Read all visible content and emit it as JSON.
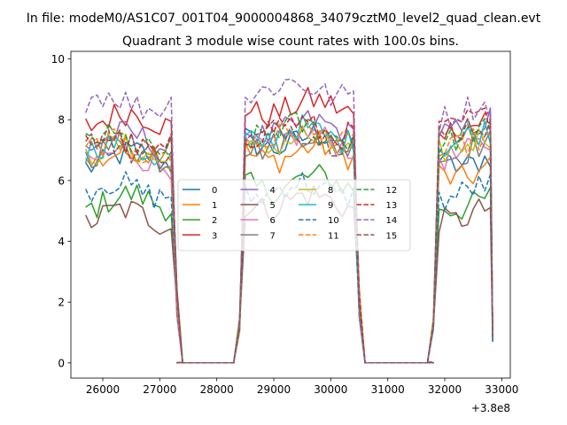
{
  "chart_data": {
    "type": "line",
    "suptitle": "In file: modeM0/AS1C07_001T04_9000004868_34079cztM0_level2_quad_clean.evt",
    "title": "Quadrant 3 module wise count rates with 100.0s bins.",
    "xlabel": "",
    "ylabel": "",
    "x_offset_label": "+3.8e8",
    "xlim": [
      25440,
      33150
    ],
    "ylim": [
      -0.5,
      10.25
    ],
    "xticks": [
      26000,
      27000,
      28000,
      29000,
      30000,
      31000,
      32000,
      33000
    ],
    "xtick_labels": [
      "26000",
      "27000",
      "28000",
      "29000",
      "30000",
      "31000",
      "32000",
      "33000"
    ],
    "yticks": [
      0,
      2,
      4,
      6,
      8,
      10
    ],
    "ytick_labels": [
      "0",
      "2",
      "4",
      "6",
      "8",
      "10"
    ],
    "grid": false,
    "legend_location": "center",
    "legend_columns": 4,
    "segments": [
      [
        25700,
        27200
      ],
      [
        28500,
        30400
      ],
      [
        31900,
        32800
      ]
    ],
    "gaps": [
      {
        "from": 27300,
        "to": 28300,
        "value": 0
      },
      {
        "from": 30600,
        "to": 31800,
        "value": 0
      }
    ],
    "series": [
      {
        "name": "0",
        "color": "#1f77b4",
        "dash": "solid",
        "base": [
          6.7,
          7.3,
          6.7
        ],
        "end_value": 1.0
      },
      {
        "name": "1",
        "color": "#ff7f0e",
        "dash": "solid",
        "base": [
          6.8,
          6.9,
          6.3
        ],
        "end_value": 0.9
      },
      {
        "name": "2",
        "color": "#2ca02c",
        "dash": "solid",
        "base": [
          5.3,
          5.9,
          5.3
        ],
        "end_value": 0.8
      },
      {
        "name": "3",
        "color": "#d62728",
        "dash": "solid",
        "base": [
          8.0,
          8.4,
          7.9
        ],
        "end_value": 1.0
      },
      {
        "name": "4",
        "color": "#9467bd",
        "dash": "solid",
        "base": [
          7.3,
          7.7,
          7.8
        ],
        "end_value": 1.0
      },
      {
        "name": "5",
        "color": "#8c564b",
        "dash": "solid",
        "base": [
          4.8,
          5.3,
          4.9
        ],
        "end_value": 0.7
      },
      {
        "name": "6",
        "color": "#e377c2",
        "dash": "solid",
        "base": [
          6.7,
          7.3,
          7.0
        ],
        "end_value": 0.9
      },
      {
        "name": "7",
        "color": "#7f7f7f",
        "dash": "solid",
        "base": [
          6.9,
          7.3,
          7.0
        ],
        "end_value": 0.9
      },
      {
        "name": "8",
        "color": "#bcbd22",
        "dash": "solid",
        "base": [
          6.9,
          7.2,
          7.2
        ],
        "end_value": 0.9
      },
      {
        "name": "9",
        "color": "#17becf",
        "dash": "solid",
        "base": [
          7.0,
          7.5,
          7.4
        ],
        "end_value": 0.9
      },
      {
        "name": "10",
        "color": "#1f77b4",
        "dash": "dashed",
        "base": [
          5.7,
          5.7,
          5.6
        ],
        "end_value": 0.7
      },
      {
        "name": "11",
        "color": "#ff7f0e",
        "dash": "dashed",
        "base": [
          7.0,
          7.4,
          7.1
        ],
        "end_value": 0.9
      },
      {
        "name": "12",
        "color": "#2ca02c",
        "dash": "dashed",
        "base": [
          7.2,
          7.6,
          7.4
        ],
        "end_value": 0.9
      },
      {
        "name": "13",
        "color": "#d62728",
        "dash": "dashed",
        "base": [
          7.2,
          7.7,
          7.8
        ],
        "end_value": 0.9
      },
      {
        "name": "14",
        "color": "#9467bd",
        "dash": "dashed",
        "base": [
          8.6,
          9.0,
          8.2
        ],
        "end_value": 1.0
      },
      {
        "name": "15",
        "color": "#8c564b",
        "dash": "dashed",
        "base": [
          7.1,
          7.5,
          7.6
        ],
        "end_value": 0.9
      }
    ]
  }
}
